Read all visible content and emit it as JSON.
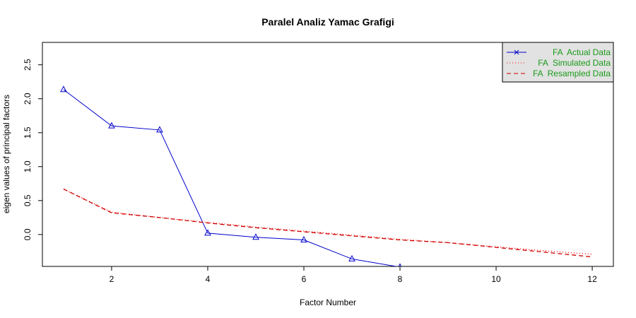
{
  "chart_data": {
    "type": "line",
    "title": "Paralel Analiz Yamac Grafigi",
    "x_label": "Factor Number",
    "y_label": "eigen values of principal factors",
    "xlim": [
      0.56,
      12.44
    ],
    "xticks": [
      2,
      4,
      6,
      8,
      10,
      12
    ],
    "ylim": [
      -0.47,
      2.83
    ],
    "yticks": [
      0.0,
      0.5,
      1.0,
      1.5,
      2.0,
      2.5
    ],
    "legend_position": "top-right",
    "legend_text_color": "#1a9a1a",
    "series": [
      {
        "name": "FA  Actual Data",
        "color": "#0000cc",
        "linestyle": "solid",
        "marker": "triangle",
        "legend_marker": "cross",
        "x": [
          1,
          2,
          3,
          4,
          5,
          6,
          7,
          8
        ],
        "values": [
          2.135,
          1.6,
          1.54,
          0.02,
          -0.04,
          -0.08,
          -0.36,
          -0.48
        ]
      },
      {
        "name": "FA  Simulated Data",
        "color": "#ff0000",
        "linestyle": "dotted",
        "marker": null,
        "x": [
          1,
          2,
          3,
          4,
          5,
          6,
          7,
          8,
          9,
          10,
          11,
          12
        ],
        "values": [
          0.67,
          0.33,
          0.25,
          0.18,
          0.11,
          0.05,
          -0.01,
          -0.07,
          -0.12,
          -0.18,
          -0.24,
          -0.29
        ]
      },
      {
        "name": "FA  Resampled Data",
        "color": "#cc0000",
        "linestyle": "dashed",
        "marker": null,
        "x": [
          1,
          2,
          3,
          4,
          5,
          6,
          7,
          8,
          9,
          10,
          11,
          12
        ],
        "values": [
          0.67,
          0.32,
          0.25,
          0.17,
          0.1,
          0.04,
          -0.02,
          -0.08,
          -0.12,
          -0.19,
          -0.26,
          -0.33
        ]
      }
    ]
  }
}
